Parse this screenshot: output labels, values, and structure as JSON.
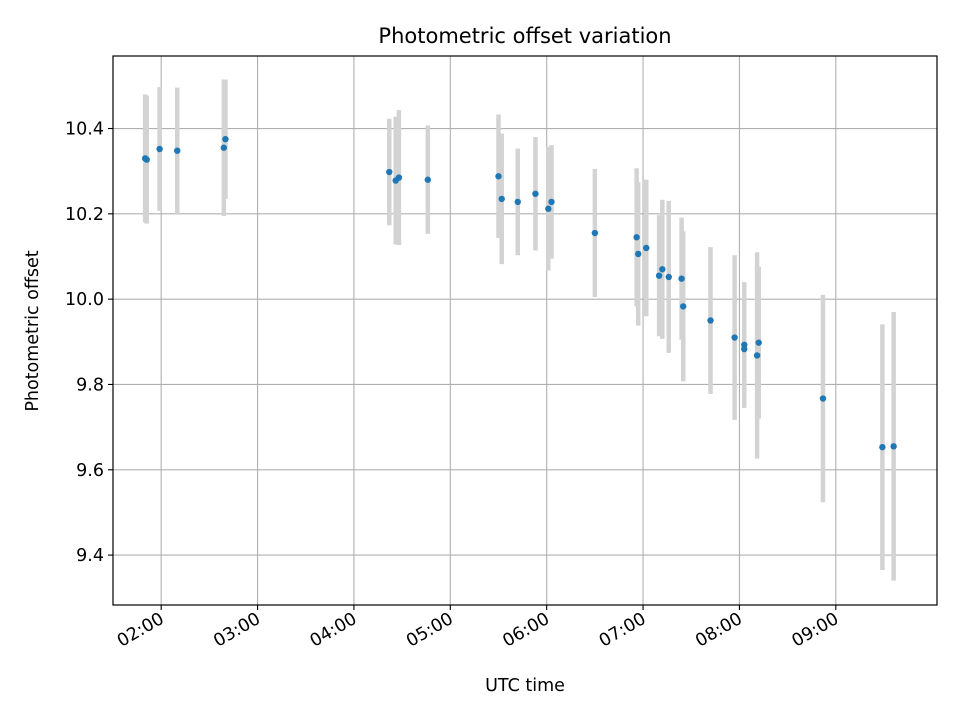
{
  "chart_data": {
    "type": "scatter",
    "title": "Photometric offset variation",
    "xlabel": "UTC time",
    "ylabel": "Photometric offset",
    "x_tick_labels": [
      "02:00",
      "03:00",
      "04:00",
      "05:00",
      "06:00",
      "07:00",
      "08:00",
      "09:00"
    ],
    "y_tick_labels": [
      "9.4",
      "9.6",
      "9.8",
      "10.0",
      "10.2",
      "10.4"
    ],
    "y_ticks": [
      9.4,
      9.6,
      9.8,
      10.0,
      10.2,
      10.4
    ],
    "xlim": [
      "01:30",
      "10:03"
    ],
    "ylim": [
      9.283,
      10.57
    ],
    "grid": true,
    "colors": {
      "point": "#1f77b4",
      "errorbar": "#d3d3d3",
      "grid": "#b0b0b0"
    },
    "points": [
      {
        "time": "01:50",
        "y": 10.33,
        "err": 0.15
      },
      {
        "time": "01:51",
        "y": 10.327,
        "err": 0.15
      },
      {
        "time": "01:59",
        "y": 10.352,
        "err": 0.145
      },
      {
        "time": "02:10",
        "y": 10.348,
        "err": 0.148
      },
      {
        "time": "02:39",
        "y": 10.355,
        "err": 0.16
      },
      {
        "time": "02:40",
        "y": 10.375,
        "err": 0.14
      },
      {
        "time": "04:22",
        "y": 10.298,
        "err": 0.125
      },
      {
        "time": "04:26",
        "y": 10.278,
        "err": 0.15
      },
      {
        "time": "04:28",
        "y": 10.285,
        "err": 0.158
      },
      {
        "time": "04:46",
        "y": 10.28,
        "err": 0.127
      },
      {
        "time": "05:30",
        "y": 10.288,
        "err": 0.145
      },
      {
        "time": "05:32",
        "y": 10.235,
        "err": 0.153
      },
      {
        "time": "05:42",
        "y": 10.228,
        "err": 0.125
      },
      {
        "time": "05:53",
        "y": 10.247,
        "err": 0.133
      },
      {
        "time": "06:01",
        "y": 10.212,
        "err": 0.145
      },
      {
        "time": "06:03",
        "y": 10.228,
        "err": 0.133
      },
      {
        "time": "06:30",
        "y": 10.155,
        "err": 0.15
      },
      {
        "time": "06:56",
        "y": 10.145,
        "err": 0.162
      },
      {
        "time": "06:57",
        "y": 10.106,
        "err": 0.168
      },
      {
        "time": "07:02",
        "y": 10.12,
        "err": 0.16
      },
      {
        "time": "07:10",
        "y": 10.055,
        "err": 0.142
      },
      {
        "time": "07:12",
        "y": 10.07,
        "err": 0.163
      },
      {
        "time": "07:16",
        "y": 10.052,
        "err": 0.178
      },
      {
        "time": "07:24",
        "y": 10.048,
        "err": 0.143
      },
      {
        "time": "07:25",
        "y": 9.983,
        "err": 0.176
      },
      {
        "time": "07:42",
        "y": 9.95,
        "err": 0.172
      },
      {
        "time": "07:57",
        "y": 9.91,
        "err": 0.193
      },
      {
        "time": "08:03",
        "y": 9.883,
        "err": 0.138
      },
      {
        "time": "08:03",
        "y": 9.893,
        "err": 0.147
      },
      {
        "time": "08:11",
        "y": 9.868,
        "err": 0.242
      },
      {
        "time": "08:12",
        "y": 9.898,
        "err": 0.178
      },
      {
        "time": "08:52",
        "y": 9.767,
        "err": 0.243
      },
      {
        "time": "09:29",
        "y": 9.653,
        "err": 0.288
      },
      {
        "time": "09:36",
        "y": 9.655,
        "err": 0.315
      }
    ]
  }
}
